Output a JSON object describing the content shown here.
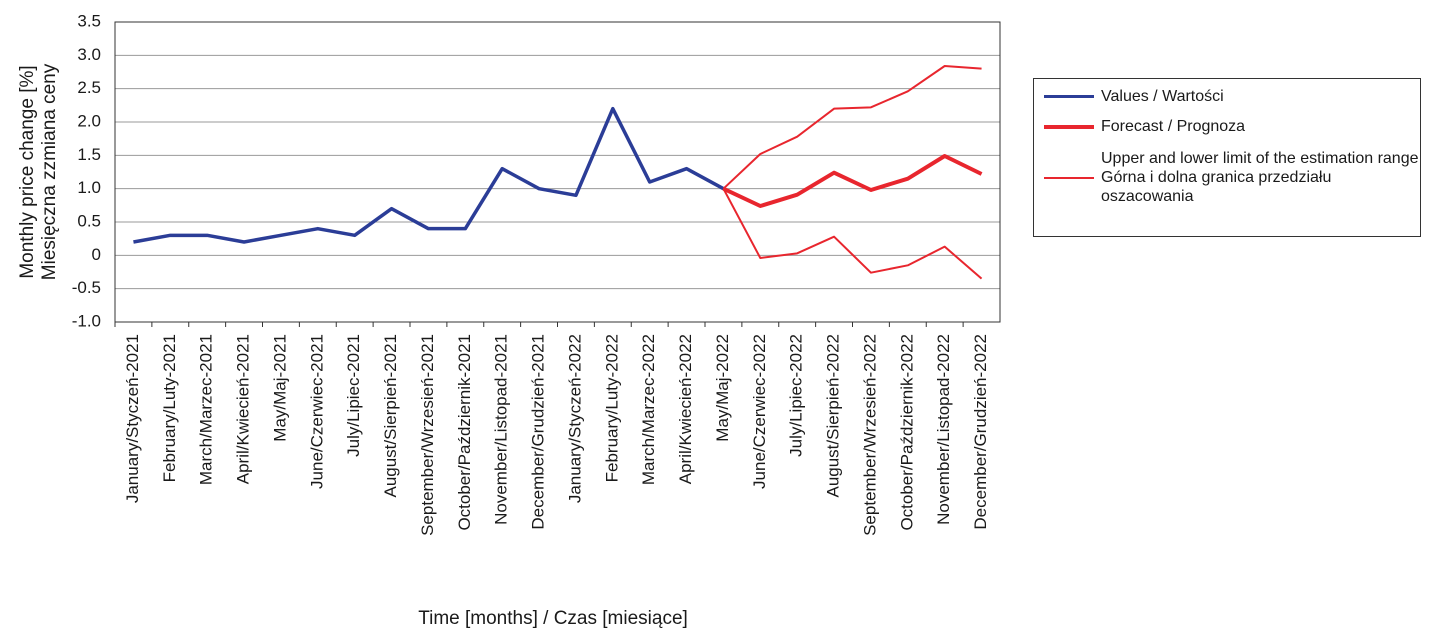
{
  "chart_data": {
    "type": "line",
    "ylabel": [
      "Monthly price change [%]",
      "Miesięczna zzmiana ceny"
    ],
    "xlabel": "Time [months] / Czas [miesiące]",
    "categories": [
      "January/Styczeń-2021",
      "February/Luty-2021",
      "March/Marzec-2021",
      "April/Kwiecień-2021",
      "May/Maj-2021",
      "June/Czerwiec-2021",
      "July/Lipiec-2021",
      "August/Sierpień-2021",
      "September/Wrzesień-2021",
      "October/Październik-2021",
      "November/Listopad-2021",
      "December/Grudzień-2021",
      "January/Styczeń-2022",
      "February/Luty-2022",
      "March/Marzec-2022",
      "April/Kwiecień-2022",
      "May/Maj-2022",
      "June/Czerwiec-2022",
      "July/Lipiec-2022",
      "August/Sierpień-2022",
      "September/Wrzesień-2022",
      "October/Październik-2022",
      "November/Listopad-2022",
      "December/Grudzień-2022"
    ],
    "series": [
      {
        "name": "Values / Wartości",
        "color": "#2b3d97",
        "values": [
          0.2,
          0.3,
          0.3,
          0.2,
          0.3,
          0.4,
          0.3,
          0.7,
          0.4,
          0.4,
          1.3,
          1.0,
          0.9,
          2.2,
          1.1,
          1.3,
          1.0,
          null,
          null,
          null,
          null,
          null,
          null,
          null
        ]
      },
      {
        "name": "Forecast / Prognoza",
        "color": "#e8262e",
        "values": [
          null,
          null,
          null,
          null,
          null,
          null,
          null,
          null,
          null,
          null,
          null,
          null,
          null,
          null,
          null,
          null,
          1.0,
          0.74,
          0.91,
          1.24,
          0.98,
          1.15,
          1.49,
          1.22
        ]
      },
      {
        "name": "Upper and lower limit of the estimation range\nGórna i dolna granica przedziału oszacowania",
        "color": "#e8262e",
        "values": [
          null,
          null,
          null,
          null,
          null,
          null,
          null,
          null,
          null,
          null,
          null,
          null,
          null,
          null,
          null,
          null,
          1.0,
          1.52,
          1.78,
          2.2,
          2.22,
          2.46,
          2.84,
          2.8
        ]
      },
      {
        "color": "#e8262e",
        "values": [
          null,
          null,
          null,
          null,
          null,
          null,
          null,
          null,
          null,
          null,
          null,
          null,
          null,
          null,
          null,
          null,
          1.0,
          -0.04,
          0.03,
          0.28,
          -0.26,
          -0.15,
          0.13,
          -0.35
        ]
      }
    ],
    "ylim": [
      -1.0,
      3.5
    ],
    "yticks": [
      {
        "value": -1.0,
        "label": "-1.0"
      },
      -0.5,
      0,
      0.5,
      {
        "value": 1.0,
        "label": "1.0"
      },
      1.5,
      {
        "value": 2.0,
        "label": "2.0"
      },
      2.5,
      {
        "value": 3.0,
        "label": "3.0"
      },
      3.5
    ],
    "grid": true
  }
}
